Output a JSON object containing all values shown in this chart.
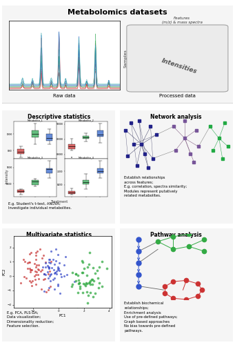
{
  "title": "Metabolomics datasets",
  "section1_title": "Descriptive statistics",
  "section2_title": "Network analysis",
  "section3_title": "Multivariate statistics",
  "section4_title": "Pathway analysis",
  "raw_data_label": "Raw data",
  "processed_data_label": "Processed data",
  "features_label": "Features\n(m/z) & mass spectra",
  "samples_label": "Samples",
  "intensities_label": "Intensities",
  "desc_text": "E.g. Student's t-test, ANOVA;\nInvestigate individual metabolites.",
  "network_text": "Establish relationships\nacross features;\nE.g. correlation, spectra similarity;\nModules represent putatively\nrelated metabolites.",
  "multivar_text": "E.g. PCA, PLS-DA;\nData visualization;\nDimensionality reduction;\nFeature selection.",
  "pathway_text": "Establish biochemical\nrelationships;\nEnrichment analysis\nUse of pre-defined pathways;\nGraph based approaches\nNo bias towards pre-defined\npathways.",
  "chrom_colors": [
    "#cc3333",
    "#cc3333",
    "#cc3333",
    "#cc3333",
    "#33aa55",
    "#33aa55",
    "#33aa55",
    "#3366cc",
    "#3366cc",
    "#3366cc",
    "#33aaaa",
    "#33aaaa"
  ],
  "peak_positions": [
    1.2,
    2.1,
    2.9,
    3.8,
    4.5,
    5.1,
    6.3,
    7.0,
    7.8,
    9.0
  ]
}
